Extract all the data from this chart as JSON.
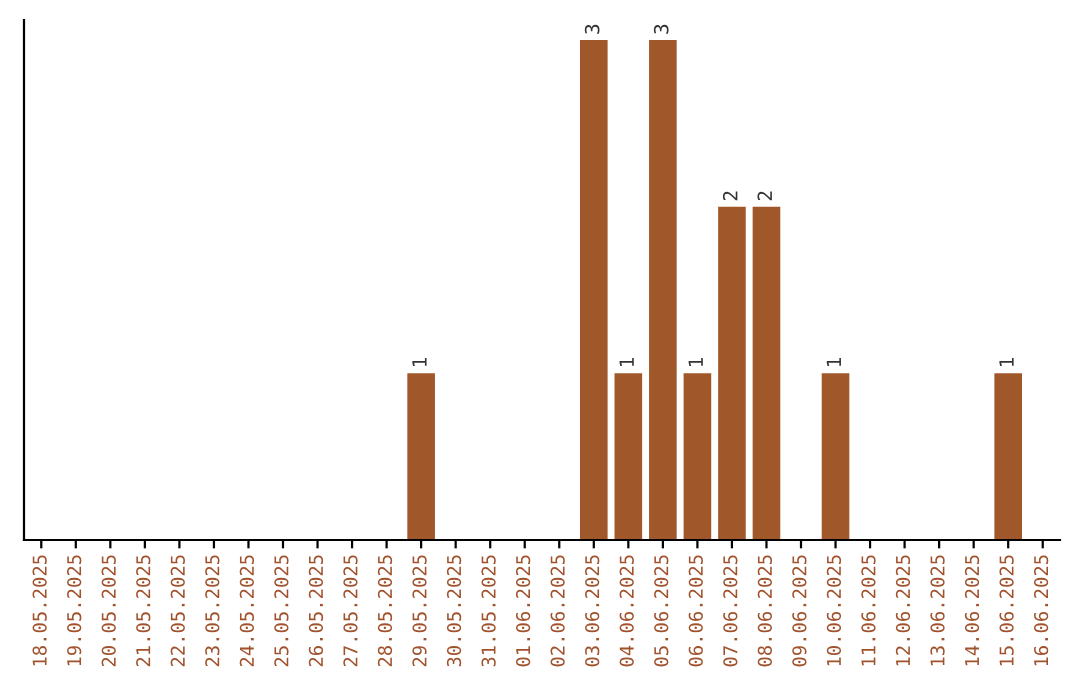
{
  "chart_data": {
    "type": "bar",
    "categories": [
      "18.05.2025",
      "19.05.2025",
      "20.05.2025",
      "21.05.2025",
      "22.05.2025",
      "23.05.2025",
      "24.05.2025",
      "25.05.2025",
      "26.05.2025",
      "27.05.2025",
      "28.05.2025",
      "29.05.2025",
      "30.05.2025",
      "31.05.2025",
      "01.06.2025",
      "02.06.2025",
      "03.06.2025",
      "04.06.2025",
      "05.06.2025",
      "06.06.2025",
      "07.06.2025",
      "08.06.2025",
      "09.06.2025",
      "10.06.2025",
      "11.06.2025",
      "12.06.2025",
      "13.06.2025",
      "14.06.2025",
      "15.06.2025",
      "16.06.2025"
    ],
    "values": [
      0,
      0,
      0,
      0,
      0,
      0,
      0,
      0,
      0,
      0,
      0,
      1,
      0,
      0,
      0,
      0,
      3,
      1,
      3,
      1,
      2,
      2,
      0,
      1,
      0,
      0,
      0,
      0,
      1,
      0
    ],
    "value_labels": [
      null,
      null,
      null,
      null,
      null,
      null,
      null,
      null,
      null,
      null,
      null,
      "1",
      null,
      null,
      null,
      null,
      "3",
      "1",
      "3",
      "1",
      "2",
      "2",
      null,
      "1",
      null,
      null,
      null,
      null,
      "1",
      null
    ],
    "color": "#a0582a",
    "tick_labels": "x",
    "grid": false,
    "legend": false
  }
}
